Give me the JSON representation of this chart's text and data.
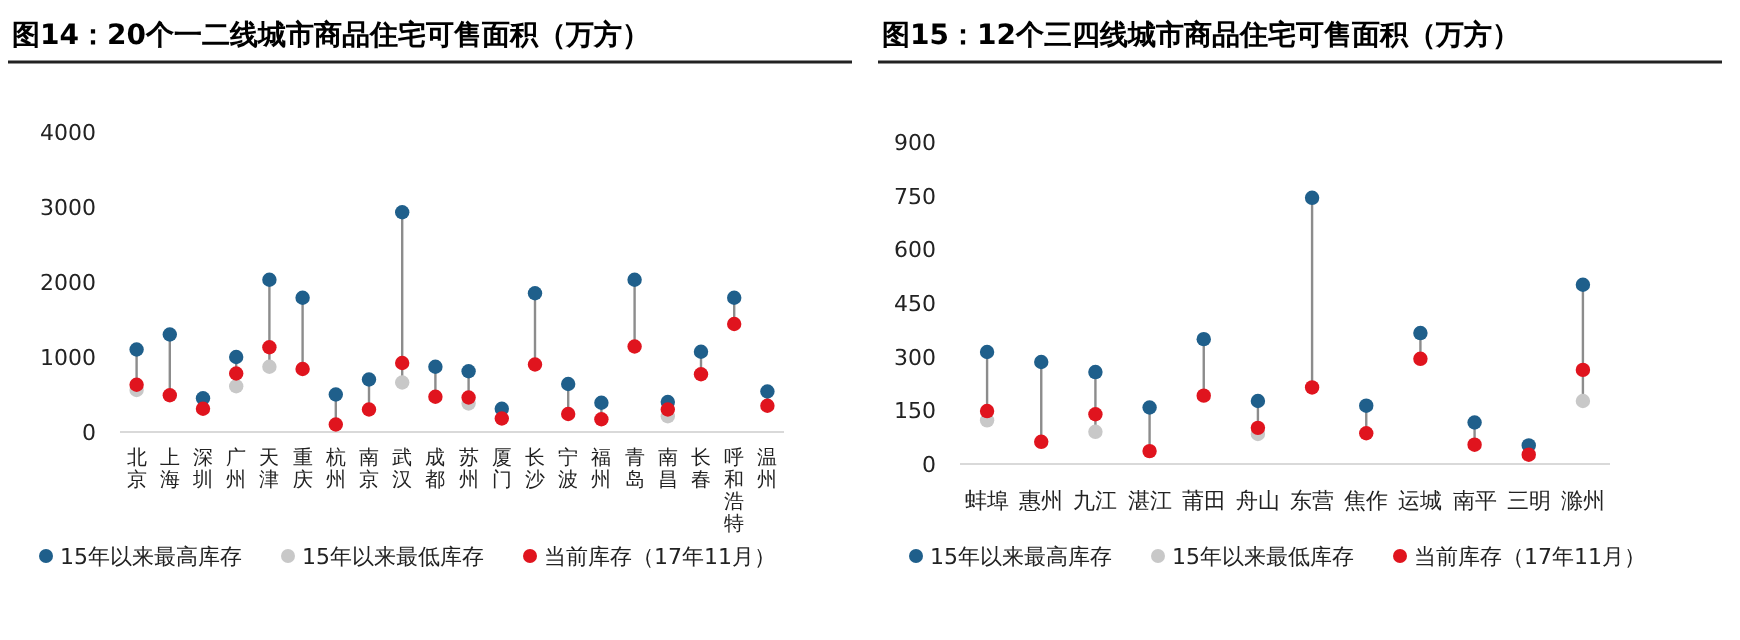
{
  "chart_data": [
    {
      "type": "scatter",
      "title": "图14：20个一二线城市商品住宅可售面积（万方）",
      "categories": [
        "北京",
        "上海",
        "深圳",
        "广州",
        "天津",
        "重庆",
        "杭州",
        "南京",
        "武汉",
        "成都",
        "苏州",
        "厦门",
        "长沙",
        "宁波",
        "福州",
        "青岛",
        "南昌",
        "长春",
        "呼和浩特",
        "温州"
      ],
      "series": [
        {
          "name": "15年以来最高库存",
          "color": "#1f5f8b",
          "values": [
            1100,
            1300,
            450,
            1000,
            2030,
            1790,
            500,
            700,
            2930,
            870,
            810,
            310,
            1850,
            640,
            390,
            2030,
            400,
            1070,
            1790,
            540
          ]
        },
        {
          "name": "15年以来最低库存",
          "color": "#c8c8c8",
          "values": [
            560,
            null,
            null,
            610,
            870,
            null,
            null,
            null,
            660,
            null,
            380,
            null,
            null,
            null,
            null,
            null,
            210,
            null,
            null,
            null
          ]
        },
        {
          "name": "当前库存（17年11月）",
          "color": "#e0141e",
          "values": [
            630,
            490,
            310,
            780,
            1130,
            840,
            100,
            300,
            920,
            470,
            460,
            180,
            900,
            240,
            170,
            1140,
            300,
            770,
            1440,
            350
          ]
        }
      ],
      "ylim": [
        0,
        4000
      ],
      "yticks": [
        0,
        1000,
        2000,
        3000,
        4000
      ],
      "legend": "bottom",
      "marker": "circle"
    },
    {
      "type": "scatter",
      "title": "图15：12个三四线城市商品住宅可售面积（万方）",
      "categories": [
        "蚌埠",
        "惠州",
        "九江",
        "湛江",
        "莆田",
        "舟山",
        "东营",
        "焦作",
        "运城",
        "南平",
        "三明",
        "滁州"
      ],
      "series": [
        {
          "name": "15年以来最高库存",
          "color": "#1f5f8b",
          "values": [
            313,
            285,
            257,
            158,
            349,
            176,
            744,
            163,
            366,
            116,
            52,
            501
          ]
        },
        {
          "name": "15年以来最低库存",
          "color": "#c8c8c8",
          "values": [
            122,
            null,
            90,
            null,
            null,
            84,
            null,
            null,
            null,
            null,
            null,
            176
          ]
        },
        {
          "name": "当前库存（17年11月）",
          "color": "#e0141e",
          "values": [
            148,
            62,
            139,
            36,
            191,
            101,
            214,
            86,
            294,
            54,
            26,
            263
          ]
        }
      ],
      "ylim": [
        0,
        900
      ],
      "yticks": [
        0,
        150,
        300,
        450,
        600,
        750,
        900
      ],
      "legend": "bottom",
      "marker": "circle"
    }
  ]
}
